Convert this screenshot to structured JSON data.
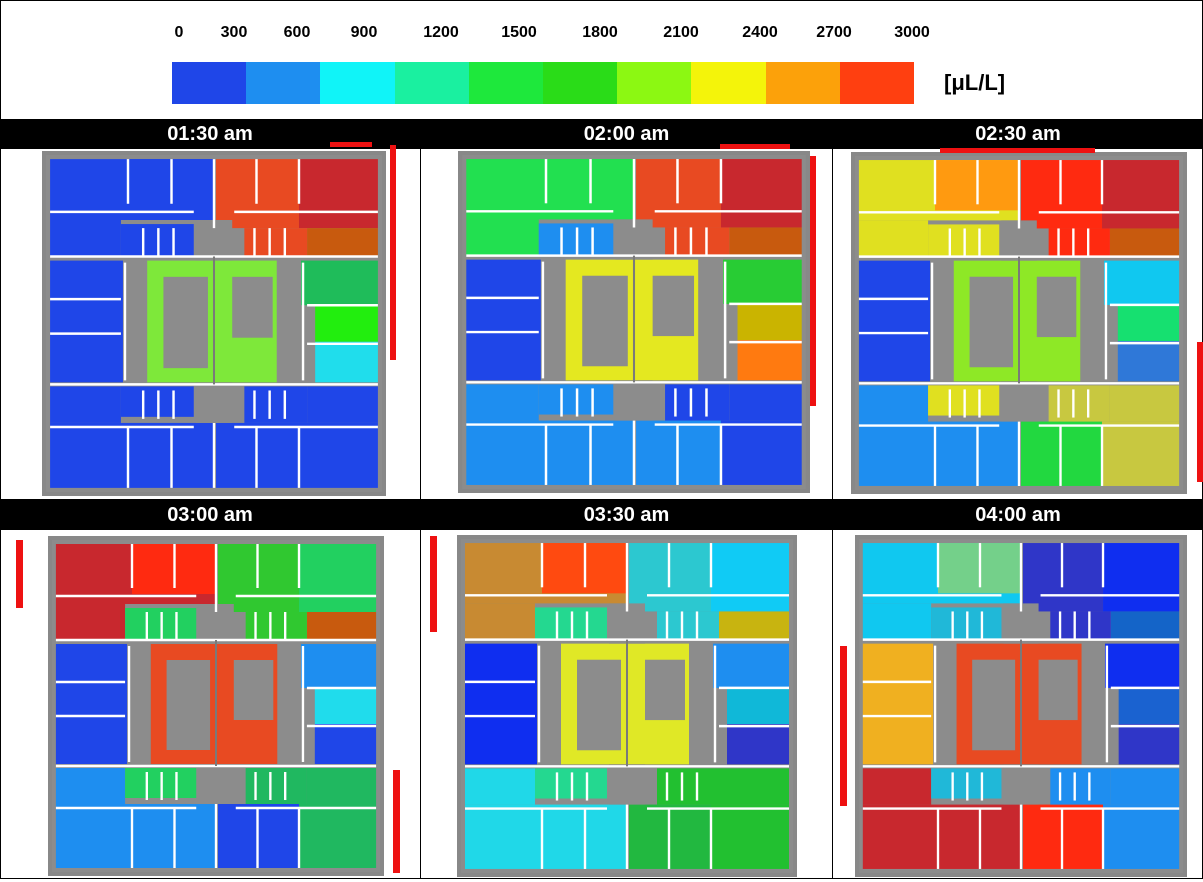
{
  "legend": {
    "ticks": [
      "0",
      "300",
      "600",
      "900",
      "1200",
      "1500",
      "1800",
      "2100",
      "2400",
      "2700",
      "3000"
    ],
    "colors": [
      "#1f46e8",
      "#1e8ef0",
      "#10f4f8",
      "#1af0a0",
      "#1ee83c",
      "#2adc18",
      "#8cf812",
      "#f4f40a",
      "#fca10a",
      "#ff3f10"
    ],
    "unit": "[μL/L]"
  },
  "panels": [
    {
      "label": "01:30 am",
      "colors": {
        "topleft": "#1f46e8",
        "topmid": "#1f46e8",
        "topright1": "#e84a22",
        "topright2": "#c8282e",
        "topright3": "#c85a0e",
        "midleft": "#1f46e8",
        "center": "#7ee83a",
        "midright1": "#1fbc5a",
        "midright2": "#22ee0e",
        "midright3": "#20ddec",
        "botleft": "#1f46e8",
        "botmid": "#1f46e8",
        "botright": "#1f46e8",
        "corridor": "#1f46e8"
      }
    },
    {
      "label": "02:00 am",
      "colors": {
        "topleft": "#22e050",
        "topmid": "#22e050",
        "topright1": "#e84a22",
        "topright2": "#c8282e",
        "topright3": "#c85a0e",
        "midleft": "#1f46e8",
        "center": "#e4e820",
        "midright1": "#28cc34",
        "midright2": "#cab400",
        "midright3": "#ff7a10",
        "botleft": "#1e8ef0",
        "botmid": "#1e8ef0",
        "botright": "#1f46e8",
        "corridor": "#1e8ef0"
      }
    },
    {
      "label": "02:30 am",
      "colors": {
        "topleft": "#e0e020",
        "topmid": "#ff9a10",
        "topright1": "#ff2a10",
        "topright2": "#c8282e",
        "topright3": "#c85a0e",
        "midleft": "#1f46e8",
        "center": "#8ee826",
        "midright1": "#10c8f0",
        "midright2": "#16e070",
        "midright3": "#2f78d8",
        "botleft": "#1e8ef0",
        "botmid": "#22d840",
        "botright": "#c8c840",
        "corridor": "#e0e020"
      }
    },
    {
      "label": "03:00 am",
      "colors": {
        "topleft": "#c8282e",
        "topmid": "#ff2a10",
        "topright1": "#30c830",
        "topright2": "#22d060",
        "topright3": "#c85a0e",
        "midleft": "#1f46e8",
        "center": "#e84a22",
        "midright1": "#1e8ef0",
        "midright2": "#20dcec",
        "midright3": "#1f46e8",
        "botleft": "#1e8ef0",
        "botmid": "#1f46e8",
        "botright": "#20b860",
        "corridor": "#22d060"
      }
    },
    {
      "label": "03:30 am",
      "colors": {
        "topleft": "#c88a32",
        "topmid": "#ff4a10",
        "topright1": "#2cc8d0",
        "topright2": "#10cbf5",
        "topright3": "#c8b410",
        "midleft": "#0f2ef0",
        "center": "#e0e826",
        "midright1": "#1e8ef0",
        "midright2": "#10b8d8",
        "midright3": "#2f36c8",
        "botleft": "#20d8e8",
        "botmid": "#22b840",
        "botright": "#22c030",
        "corridor": "#24d890"
      }
    },
    {
      "label": "04:00 am",
      "colors": {
        "topleft": "#10c8f0",
        "topmid": "#74d08a",
        "topright1": "#2f36c8",
        "topright2": "#0f2ef0",
        "topright3": "#1464c8",
        "midleft": "#f0b020",
        "center": "#e84a22",
        "midright1": "#0f2ef0",
        "midright2": "#1a62d0",
        "midright3": "#2f36c8",
        "botleft": "#c8282e",
        "botmid": "#ff2a10",
        "botright": "#1e8ef0",
        "corridor": "#20b8d8"
      }
    }
  ]
}
